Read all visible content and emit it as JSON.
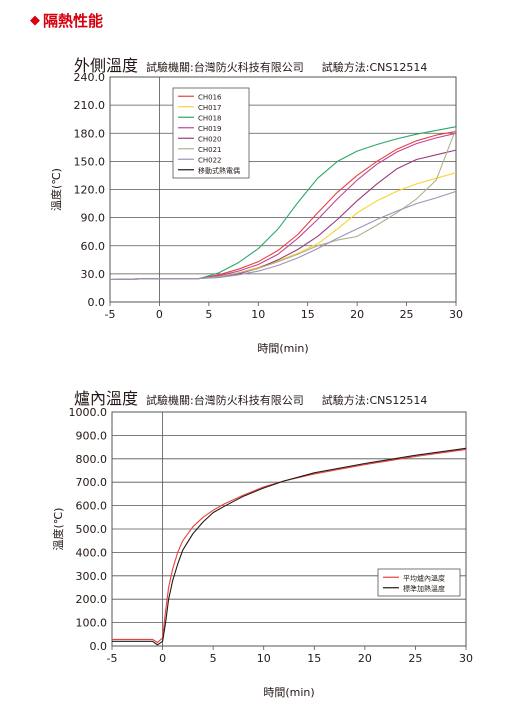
{
  "section_title": "隔熱性能",
  "chart_data": [
    {
      "type": "line",
      "title": "外側溫度",
      "subtitle_lab": "試驗機關:台灣防火科技有限公司",
      "subtitle_method": "試驗方法:CNS12514",
      "xlabel": "時間(min)",
      "ylabel": "溫度(℃)",
      "xlim": [
        -5,
        30
      ],
      "ylim": [
        0,
        240
      ],
      "xticks": [
        -5,
        0,
        5,
        10,
        15,
        20,
        25,
        30
      ],
      "yticks": [
        0,
        30,
        60,
        90,
        120,
        150,
        180,
        210,
        240
      ],
      "ytick_labels": [
        "0.0",
        "30.0",
        "60.0",
        "90.0",
        "120.0",
        "150.0",
        "180.0",
        "210.0",
        "240.0"
      ],
      "legend_position": "top-left",
      "grid": "horizontal",
      "series": [
        {
          "name": "CH016",
          "color": "#e8413c",
          "x": [
            -5,
            0,
            4,
            6,
            8,
            10,
            12,
            14,
            16,
            18,
            20,
            22,
            24,
            26,
            28,
            30
          ],
          "y": [
            24,
            25,
            25,
            29,
            35,
            43,
            55,
            72,
            95,
            117,
            135,
            150,
            163,
            172,
            178,
            182
          ]
        },
        {
          "name": "CH017",
          "color": "#f5d533",
          "x": [
            -5,
            0,
            4,
            6,
            8,
            10,
            12,
            14,
            16,
            18,
            20,
            22,
            24,
            26,
            28,
            30
          ],
          "y": [
            24,
            25,
            25,
            27,
            31,
            37,
            44,
            52,
            62,
            78,
            95,
            108,
            118,
            126,
            132,
            138
          ]
        },
        {
          "name": "CH018",
          "color": "#2aa86a",
          "x": [
            -5,
            0,
            4,
            6,
            8,
            10,
            12,
            14,
            16,
            18,
            20,
            22,
            24,
            26,
            28,
            30
          ],
          "y": [
            24,
            25,
            25,
            31,
            42,
            57,
            78,
            106,
            132,
            150,
            161,
            168,
            174,
            179,
            183,
            187
          ]
        },
        {
          "name": "CH019",
          "color": "#c0449a",
          "x": [
            -5,
            0,
            4,
            6,
            8,
            10,
            12,
            14,
            16,
            18,
            20,
            22,
            24,
            26,
            28,
            30
          ],
          "y": [
            24,
            25,
            25,
            28,
            33,
            40,
            51,
            68,
            88,
            110,
            130,
            147,
            160,
            169,
            175,
            180
          ]
        },
        {
          "name": "CH020",
          "color": "#9b3a78",
          "x": [
            -5,
            0,
            4,
            6,
            8,
            10,
            12,
            14,
            16,
            18,
            20,
            22,
            24,
            26,
            28,
            30
          ],
          "y": [
            24,
            25,
            25,
            27,
            30,
            36,
            45,
            56,
            70,
            88,
            108,
            126,
            142,
            152,
            157,
            162
          ]
        },
        {
          "name": "CH021",
          "color": "#b2b08a",
          "x": [
            -5,
            0,
            4,
            6,
            8,
            10,
            12,
            14,
            16,
            18,
            20,
            22,
            24,
            26,
            28,
            30
          ],
          "y": [
            24,
            25,
            25,
            27,
            31,
            36,
            43,
            51,
            60,
            66,
            70,
            82,
            95,
            110,
            130,
            185
          ]
        },
        {
          "name": "CH022",
          "color": "#9b93b8",
          "x": [
            -5,
            0,
            4,
            6,
            8,
            10,
            12,
            14,
            16,
            18,
            20,
            22,
            24,
            26,
            28,
            30
          ],
          "y": [
            24,
            25,
            25,
            26,
            29,
            33,
            39,
            47,
            57,
            68,
            78,
            88,
            97,
            105,
            111,
            118
          ]
        },
        {
          "name": "移動式熱電偶",
          "color": "#231815",
          "x": [],
          "y": []
        }
      ]
    },
    {
      "type": "line",
      "title": "爐內溫度",
      "subtitle_lab": "試驗機關:台灣防火科技有限公司",
      "subtitle_method": "試驗方法:CNS12514",
      "xlabel": "時間(min)",
      "ylabel": "溫度(℃)",
      "xlim": [
        -5,
        30
      ],
      "ylim": [
        0,
        1000
      ],
      "xticks": [
        -5,
        0,
        5,
        10,
        15,
        20,
        25,
        30
      ],
      "yticks": [
        0,
        100,
        200,
        300,
        400,
        500,
        600,
        700,
        800,
        900,
        1000
      ],
      "ytick_labels": [
        "0.0",
        "100.0",
        "200.0",
        "300.0",
        "400.0",
        "500.0",
        "600.0",
        "700.0",
        "800.0",
        "900.0",
        "1000.0"
      ],
      "legend_position": "bottom-right",
      "grid": "horizontal",
      "series": [
        {
          "name": "平均爐內溫度",
          "color": "#e8413c",
          "x": [
            -5,
            -1,
            -0.5,
            0,
            0.3,
            0.6,
            1,
            1.5,
            2,
            3,
            4,
            5,
            6,
            8,
            10,
            12,
            15,
            20,
            25,
            30
          ],
          "y": [
            28,
            28,
            15,
            35,
            150,
            250,
            330,
            400,
            450,
            510,
            550,
            580,
            605,
            645,
            680,
            705,
            735,
            775,
            810,
            840
          ]
        },
        {
          "name": "標準加熱溫度",
          "color": "#231815",
          "x": [
            -5,
            -1,
            -0.5,
            0,
            0.3,
            0.6,
            1,
            1.5,
            2,
            3,
            4,
            5,
            6,
            8,
            10,
            12,
            15,
            20,
            25,
            30
          ],
          "y": [
            20,
            20,
            5,
            20,
            100,
            200,
            280,
            350,
            410,
            480,
            530,
            570,
            595,
            640,
            675,
            705,
            740,
            780,
            815,
            845
          ]
        }
      ]
    }
  ]
}
